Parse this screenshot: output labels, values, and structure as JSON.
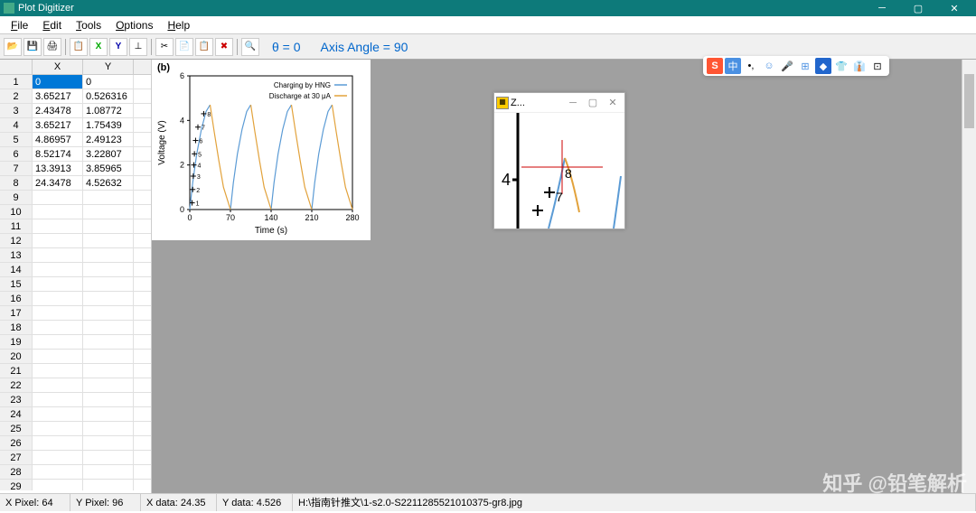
{
  "title": "Plot Digitizer",
  "menu": {
    "file": "File",
    "edit": "Edit",
    "tools": "Tools",
    "options": "Options",
    "help": "Help"
  },
  "toolbar_icons": [
    "📂",
    "💾",
    "🖨",
    "📋",
    "X",
    "Y",
    "⊥",
    "✂",
    "📄",
    "📋",
    "✖",
    "🔍"
  ],
  "angle": {
    "theta": "θ = 0",
    "axis": "Axis Angle = 90"
  },
  "grid": {
    "headers": {
      "x": "X",
      "y": "Y"
    },
    "rows": [
      {
        "n": "1",
        "x": "0",
        "y": "0"
      },
      {
        "n": "2",
        "x": "3.65217",
        "y": "0.526316"
      },
      {
        "n": "3",
        "x": "2.43478",
        "y": "1.08772"
      },
      {
        "n": "4",
        "x": "3.65217",
        "y": "1.75439"
      },
      {
        "n": "5",
        "x": "4.86957",
        "y": "2.49123"
      },
      {
        "n": "6",
        "x": "8.52174",
        "y": "3.22807"
      },
      {
        "n": "7",
        "x": "13.3913",
        "y": "3.85965"
      },
      {
        "n": "8",
        "x": "24.3478",
        "y": "4.52632"
      },
      {
        "n": "9",
        "x": "",
        "y": ""
      },
      {
        "n": "10",
        "x": "",
        "y": ""
      },
      {
        "n": "11",
        "x": "",
        "y": ""
      },
      {
        "n": "12",
        "x": "",
        "y": ""
      },
      {
        "n": "13",
        "x": "",
        "y": ""
      },
      {
        "n": "14",
        "x": "",
        "y": ""
      },
      {
        "n": "15",
        "x": "",
        "y": ""
      },
      {
        "n": "16",
        "x": "",
        "y": ""
      },
      {
        "n": "17",
        "x": "",
        "y": ""
      },
      {
        "n": "18",
        "x": "",
        "y": ""
      },
      {
        "n": "19",
        "x": "",
        "y": ""
      },
      {
        "n": "20",
        "x": "",
        "y": ""
      },
      {
        "n": "21",
        "x": "",
        "y": ""
      },
      {
        "n": "22",
        "x": "",
        "y": ""
      },
      {
        "n": "23",
        "x": "",
        "y": ""
      },
      {
        "n": "24",
        "x": "",
        "y": ""
      },
      {
        "n": "25",
        "x": "",
        "y": ""
      },
      {
        "n": "26",
        "x": "",
        "y": ""
      },
      {
        "n": "27",
        "x": "",
        "y": ""
      },
      {
        "n": "28",
        "x": "",
        "y": ""
      },
      {
        "n": "29",
        "x": "",
        "y": ""
      }
    ],
    "selected_row": 0,
    "selected_col": "x"
  },
  "chart": {
    "label_b": "(b)",
    "title": "",
    "legend": {
      "charging": "Charging by HNG",
      "discharge": "Discharge at 30 μA"
    },
    "ylabel": "Voltage (V)",
    "xlabel": "Time (s)",
    "xticks": [
      "0",
      "70",
      "140",
      "210",
      "280"
    ],
    "yticks": [
      "0",
      "2",
      "4",
      "6"
    ],
    "xlim": [
      0,
      280
    ],
    "ylim": [
      0,
      6
    ],
    "colors": {
      "charge": "#5b9bd5",
      "discharge": "#e2a23b",
      "axis": "#000",
      "bg": "#fff"
    },
    "charge_segments": [
      [
        [
          0,
          0
        ],
        [
          5,
          1.2
        ],
        [
          12,
          2.5
        ],
        [
          20,
          3.6
        ],
        [
          28,
          4.4
        ],
        [
          35,
          4.7
        ]
      ],
      [
        [
          70,
          0
        ],
        [
          75,
          1.2
        ],
        [
          82,
          2.5
        ],
        [
          90,
          3.6
        ],
        [
          98,
          4.4
        ],
        [
          105,
          4.7
        ]
      ],
      [
        [
          140,
          0
        ],
        [
          145,
          1.2
        ],
        [
          152,
          2.5
        ],
        [
          160,
          3.6
        ],
        [
          168,
          4.4
        ],
        [
          175,
          4.7
        ]
      ],
      [
        [
          210,
          0
        ],
        [
          215,
          1.2
        ],
        [
          222,
          2.5
        ],
        [
          230,
          3.6
        ],
        [
          238,
          4.4
        ],
        [
          245,
          4.7
        ]
      ]
    ],
    "discharge_segments": [
      [
        [
          35,
          4.7
        ],
        [
          42,
          3.5
        ],
        [
          50,
          2.2
        ],
        [
          58,
          1.0
        ],
        [
          70,
          0
        ]
      ],
      [
        [
          105,
          4.7
        ],
        [
          112,
          3.5
        ],
        [
          120,
          2.2
        ],
        [
          128,
          1.0
        ],
        [
          140,
          0
        ]
      ],
      [
        [
          175,
          4.7
        ],
        [
          182,
          3.5
        ],
        [
          190,
          2.2
        ],
        [
          198,
          1.0
        ],
        [
          210,
          0
        ]
      ],
      [
        [
          245,
          4.7
        ],
        [
          252,
          3.5
        ],
        [
          260,
          2.2
        ],
        [
          268,
          1.0
        ],
        [
          280,
          0
        ]
      ]
    ],
    "markers": [
      {
        "n": "1",
        "x": 4,
        "y": 0.3
      },
      {
        "n": "2",
        "x": 5,
        "y": 0.9
      },
      {
        "n": "3",
        "x": 6,
        "y": 1.5
      },
      {
        "n": "4",
        "x": 7,
        "y": 2.0
      },
      {
        "n": "5",
        "x": 8,
        "y": 2.5
      },
      {
        "n": "6",
        "x": 10,
        "y": 3.1
      },
      {
        "n": "7",
        "x": 14,
        "y": 3.7
      },
      {
        "n": "8",
        "x": 24,
        "y": 4.3
      }
    ]
  },
  "zoom": {
    "title": "Z...",
    "label4": "4",
    "label7": "7",
    "label8": "8"
  },
  "status": {
    "xpixel": "X Pixel: 64",
    "ypixel": "Y Pixel: 96",
    "xdata": "X data: 24.35",
    "ydata": "Y data: 4.526",
    "file": "H:\\指南针推文\\1-s2.0-S2211285521010375-gr8.jpg"
  },
  "watermark": "知乎 @铅笔解析",
  "ime": {
    "s": "S",
    "cn": "中",
    "dot": "•,",
    "face": "☺",
    "mic": "🎤",
    "grid": "⊞",
    "person": "👕",
    "shirt": "👔",
    "hanger": "⊡"
  }
}
